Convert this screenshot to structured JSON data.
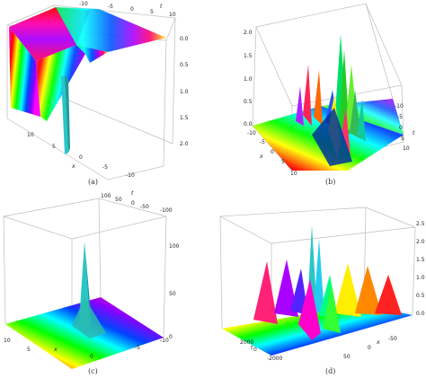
{
  "colors": {
    "rainbow": [
      "#ff00ff",
      "#ff0000",
      "#ff8800",
      "#ffff00",
      "#00ff00",
      "#00ffff",
      "#0044ff",
      "#8800ff"
    ],
    "peak": "#29c6c6",
    "box": "#bdbdbd"
  },
  "panels": [
    {
      "id": "a",
      "caption": "(a)",
      "axis_x_label": "x",
      "axis_t_label": "t",
      "x_ticks": [
        "10",
        "5",
        "0",
        "-5",
        "-10"
      ],
      "t_ticks": [
        "-10",
        "-5",
        "0",
        "5",
        "10"
      ],
      "z_ticks": [
        "0.0",
        "0.5",
        "1.0",
        "1.5",
        "2.0"
      ]
    },
    {
      "id": "b",
      "caption": "(b)",
      "axis_x_label": "x",
      "axis_t_label": "t",
      "x_ticks": [
        "-10",
        "-5",
        "0",
        "5",
        "10"
      ],
      "t_ticks": [
        "-10",
        "-5",
        "0",
        "5",
        "10"
      ],
      "z_ticks": [
        "0.0",
        "0.5",
        "1.0",
        "1.5",
        "2.0"
      ]
    },
    {
      "id": "c",
      "caption": "(c)",
      "axis_x_label": "x",
      "axis_t_label": "t",
      "x_ticks": [
        "10",
        "5",
        "0",
        "-5",
        "-10"
      ],
      "t_ticks": [
        "100",
        "50",
        "0",
        "-50",
        "-100"
      ],
      "z_ticks": [
        "0",
        "50",
        "100"
      ]
    },
    {
      "id": "d",
      "caption": "(d)",
      "axis_x_label": "x",
      "axis_t_label": "t",
      "x_ticks": [
        "-50",
        "0",
        "50"
      ],
      "t_ticks": [
        "2000",
        "0",
        "-2000"
      ],
      "z_ticks": [
        "0.0",
        "0.5",
        "1.0",
        "1.5",
        "2.0",
        "2.5"
      ]
    }
  ]
}
